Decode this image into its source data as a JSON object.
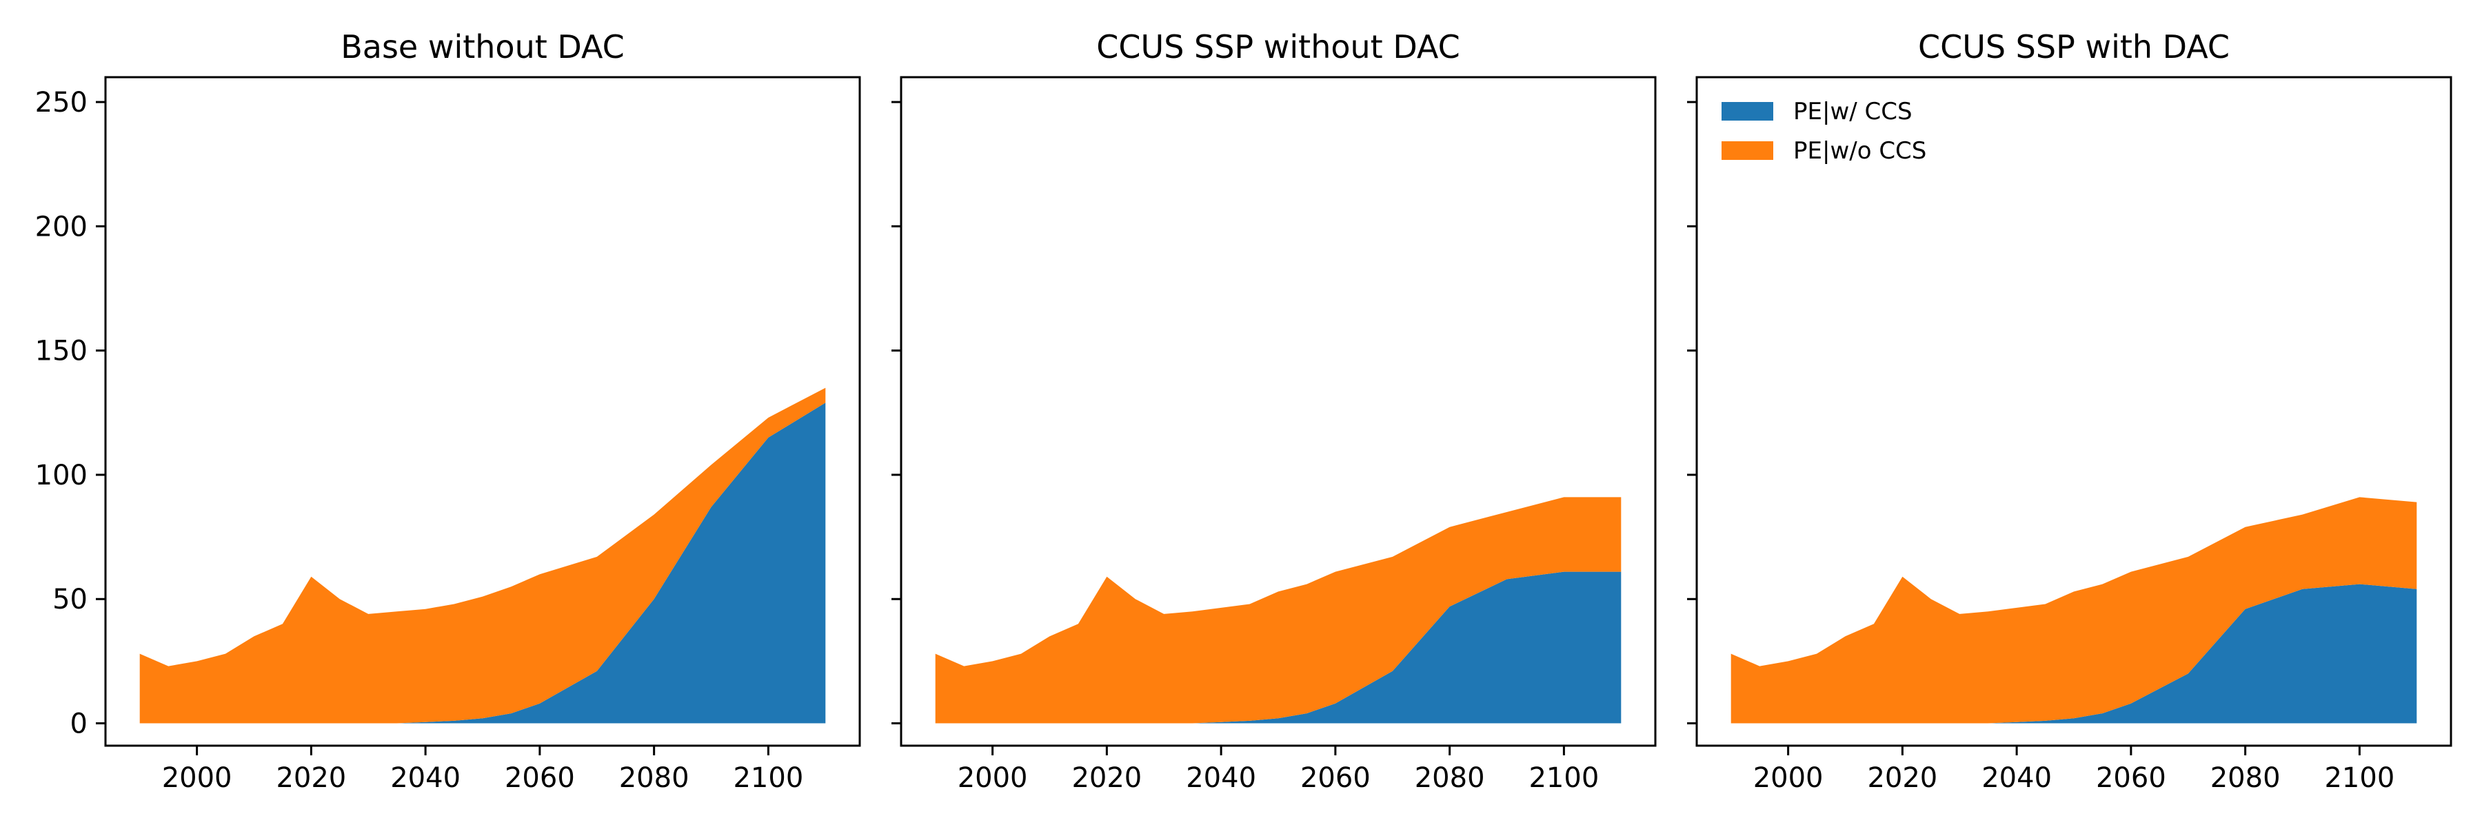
{
  "chart_data": [
    {
      "type": "area",
      "stacked": true,
      "title": "Base without DAC",
      "xlabel": "",
      "ylabel": "",
      "xlim": [
        1984,
        2116
      ],
      "ylim": [
        -9,
        260
      ],
      "x_ticks": [
        2000,
        2020,
        2040,
        2060,
        2080,
        2100
      ],
      "y_ticks": [
        0,
        50,
        100,
        150,
        200,
        250
      ],
      "grid": false,
      "x": [
        1990,
        1995,
        2000,
        2005,
        2010,
        2015,
        2020,
        2025,
        2030,
        2035,
        2040,
        2045,
        2050,
        2055,
        2060,
        2070,
        2080,
        2090,
        2100,
        2110
      ],
      "series": [
        {
          "name": "PE|w/ CCS",
          "color": "#1f77b4",
          "values": [
            0,
            0,
            0,
            0,
            0,
            0,
            0,
            0,
            0,
            0,
            0.5,
            1,
            2,
            4,
            8,
            21,
            50,
            87,
            115,
            129
          ]
        },
        {
          "name": "PE|w/o CCS",
          "color": "#ff7f0e",
          "values": [
            28,
            23,
            25,
            28,
            35,
            40,
            59,
            50,
            44,
            45,
            45.5,
            47,
            49,
            51,
            52,
            46,
            34,
            17,
            8,
            6
          ]
        }
      ]
    },
    {
      "type": "area",
      "stacked": true,
      "title": "CCUS SSP without DAC",
      "xlabel": "",
      "ylabel": "",
      "xlim": [
        1984,
        2116
      ],
      "ylim": [
        -9,
        260
      ],
      "x_ticks": [
        2000,
        2020,
        2040,
        2060,
        2080,
        2100
      ],
      "y_ticks": [
        0,
        50,
        100,
        150,
        200,
        250
      ],
      "grid": false,
      "x": [
        1990,
        1995,
        2000,
        2005,
        2010,
        2015,
        2020,
        2025,
        2030,
        2035,
        2040,
        2045,
        2050,
        2055,
        2060,
        2070,
        2080,
        2090,
        2100,
        2110
      ],
      "series": [
        {
          "name": "PE|w/ CCS",
          "color": "#1f77b4",
          "values": [
            0,
            0,
            0,
            0,
            0,
            0,
            0,
            0,
            0,
            0,
            0.5,
            1,
            2,
            4,
            8,
            21,
            47,
            58,
            61,
            61
          ]
        },
        {
          "name": "PE|w/o CCS",
          "color": "#ff7f0e",
          "values": [
            28,
            23,
            25,
            28,
            35,
            40,
            59,
            50,
            44,
            45,
            46,
            47,
            51,
            52,
            53,
            46,
            32,
            27,
            30,
            30
          ]
        }
      ]
    },
    {
      "type": "area",
      "stacked": true,
      "title": "CCUS SSP with DAC",
      "xlabel": "",
      "ylabel": "",
      "xlim": [
        1984,
        2116
      ],
      "ylim": [
        -9,
        260
      ],
      "x_ticks": [
        2000,
        2020,
        2040,
        2060,
        2080,
        2100
      ],
      "y_ticks": [
        0,
        50,
        100,
        150,
        200,
        250
      ],
      "grid": false,
      "legend_position": "top-left",
      "x": [
        1990,
        1995,
        2000,
        2005,
        2010,
        2015,
        2020,
        2025,
        2030,
        2035,
        2040,
        2045,
        2050,
        2055,
        2060,
        2070,
        2080,
        2090,
        2100,
        2110
      ],
      "series": [
        {
          "name": "PE|w/ CCS",
          "color": "#1f77b4",
          "values": [
            0,
            0,
            0,
            0,
            0,
            0,
            0,
            0,
            0,
            0,
            0.5,
            1,
            2,
            4,
            8,
            20,
            46,
            54,
            56,
            54
          ]
        },
        {
          "name": "PE|w/o CCS",
          "color": "#ff7f0e",
          "values": [
            28,
            23,
            25,
            28,
            35,
            40,
            59,
            50,
            44,
            45,
            46,
            47,
            51,
            52,
            53,
            47,
            33,
            30,
            35,
            35
          ]
        }
      ]
    }
  ]
}
